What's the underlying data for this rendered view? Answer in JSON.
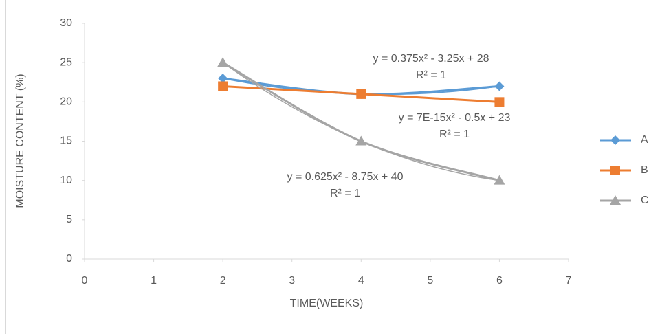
{
  "chart_data": {
    "type": "line",
    "x_label": "TIME(WEEKS)",
    "y_label": "MOISTURE CONTENT (%)",
    "x": [
      2,
      4,
      6
    ],
    "series": [
      {
        "name": "A",
        "color": "#5b9bd5",
        "marker": "diamond",
        "values": [
          23,
          21,
          22
        ]
      },
      {
        "name": "B",
        "color": "#ed7d31",
        "marker": "square",
        "values": [
          22,
          21,
          20
        ]
      },
      {
        "name": "C",
        "color": "#a5a5a5",
        "marker": "triangle",
        "values": [
          25,
          15,
          10
        ]
      }
    ],
    "trendline": "polynomial",
    "annotations": [
      {
        "equation": "y = 0.375x² - 3.25x + 28",
        "r2": "R² = 1"
      },
      {
        "equation": "y = 7E-15x² - 0.5x + 23",
        "r2": "R² = 1"
      },
      {
        "equation": "y = 0.625x² - 8.75x + 40",
        "r2": "R² = 1"
      }
    ],
    "xlim": [
      0,
      7
    ],
    "xticks": [
      0,
      1,
      2,
      3,
      4,
      5,
      6,
      7
    ],
    "ylim": [
      0,
      30
    ],
    "yticks": [
      0,
      5,
      10,
      15,
      20,
      25,
      30
    ],
    "grid": false,
    "legend": "right"
  }
}
